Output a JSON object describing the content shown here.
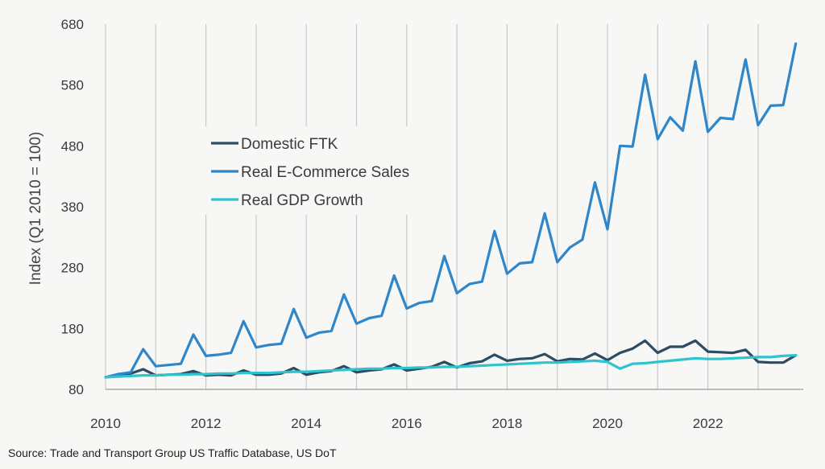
{
  "source": "Source: Trade and Transport Group US Traffic Database, US DoT",
  "chart_data": {
    "type": "line",
    "ylabel": "Index (Q1 2010 = 100)",
    "xlabel": "",
    "xlim": [
      2010,
      2023.9
    ],
    "ylim": [
      80,
      680
    ],
    "yticks": [
      80,
      180,
      280,
      380,
      480,
      580,
      680
    ],
    "xticks": [
      2010,
      2012,
      2014,
      2016,
      2018,
      2020,
      2022
    ],
    "grid": "vertical",
    "legend": "upper-left inside plot",
    "series": [
      {
        "name": "Domestic FTK",
        "color": "#2d4b63",
        "x": [
          2010,
          2010.25,
          2010.5,
          2010.75,
          2011,
          2011.25,
          2011.5,
          2011.75,
          2012,
          2012.25,
          2012.5,
          2012.75,
          2013,
          2013.25,
          2013.5,
          2013.75,
          2014,
          2014.25,
          2014.5,
          2014.75,
          2015,
          2015.25,
          2015.5,
          2015.75,
          2016,
          2016.25,
          2016.5,
          2016.75,
          2017,
          2017.25,
          2017.5,
          2017.75,
          2018,
          2018.25,
          2018.5,
          2018.75,
          2019,
          2019.25,
          2019.5,
          2019.75,
          2020,
          2020.25,
          2020.5,
          2020.75,
          2021,
          2021.25,
          2021.5,
          2021.75,
          2022,
          2022.25,
          2022.5,
          2022.75,
          2023,
          2023.25,
          2023.5,
          2023.75
        ],
        "values": [
          100,
          103,
          106,
          113,
          103,
          104,
          105,
          110,
          103,
          104,
          103,
          111,
          104,
          104,
          106,
          115,
          104,
          108,
          110,
          118,
          108,
          111,
          113,
          121,
          111,
          114,
          117,
          125,
          116,
          123,
          126,
          137,
          127,
          130,
          131,
          138,
          126,
          130,
          129,
          139,
          128,
          140,
          147,
          160,
          140,
          150,
          150,
          160,
          142,
          141,
          140,
          145,
          125,
          124,
          124,
          136
        ]
      },
      {
        "name": "Real E-Commerce Sales",
        "color": "#2f86c8",
        "x": [
          2010,
          2010.25,
          2010.5,
          2010.75,
          2011,
          2011.25,
          2011.5,
          2011.75,
          2012,
          2012.25,
          2012.5,
          2012.75,
          2013,
          2013.25,
          2013.5,
          2013.75,
          2014,
          2014.25,
          2014.5,
          2014.75,
          2015,
          2015.25,
          2015.5,
          2015.75,
          2016,
          2016.25,
          2016.5,
          2016.75,
          2017,
          2017.25,
          2017.5,
          2017.75,
          2018,
          2018.25,
          2018.5,
          2018.75,
          2019,
          2019.25,
          2019.5,
          2019.75,
          2020,
          2020.25,
          2020.5,
          2020.75,
          2021,
          2021.25,
          2021.5,
          2021.75,
          2022,
          2022.25,
          2022.5,
          2022.75,
          2023,
          2023.25,
          2023.5,
          2023.75
        ],
        "values": [
          100,
          105,
          108,
          146,
          118,
          120,
          122,
          170,
          135,
          137,
          140,
          192,
          149,
          153,
          155,
          212,
          165,
          173,
          176,
          236,
          188,
          197,
          201,
          267,
          213,
          222,
          225,
          299,
          238,
          253,
          257,
          340,
          270,
          287,
          289,
          369,
          289,
          313,
          326,
          420,
          343,
          480,
          479,
          597,
          491,
          527,
          505,
          619,
          503,
          526,
          524,
          622,
          514,
          546,
          547,
          648
        ]
      },
      {
        "name": "Real GDP Growth",
        "color": "#2ec4cf",
        "x": [
          2010,
          2010.25,
          2010.5,
          2010.75,
          2011,
          2011.25,
          2011.5,
          2011.75,
          2012,
          2012.25,
          2012.5,
          2012.75,
          2013,
          2013.25,
          2013.5,
          2013.75,
          2014,
          2014.25,
          2014.5,
          2014.75,
          2015,
          2015.25,
          2015.5,
          2015.75,
          2016,
          2016.25,
          2016.5,
          2016.75,
          2017,
          2017.25,
          2017.5,
          2017.75,
          2018,
          2018.25,
          2018.5,
          2018.75,
          2019,
          2019.25,
          2019.5,
          2019.75,
          2020,
          2020.25,
          2020.5,
          2020.75,
          2021,
          2021.25,
          2021.5,
          2021.75,
          2022,
          2022.25,
          2022.5,
          2022.75,
          2023,
          2023.25,
          2023.5,
          2023.75
        ],
        "values": [
          100,
          101,
          102,
          103,
          103,
          104,
          104,
          105,
          105,
          106,
          106,
          107,
          107,
          107,
          108,
          109,
          109,
          110,
          111,
          112,
          113,
          114,
          114,
          115,
          115,
          116,
          116,
          117,
          117,
          118,
          119,
          120,
          121,
          122,
          123,
          124,
          124,
          125,
          126,
          127,
          125,
          114,
          122,
          123,
          125,
          127,
          129,
          131,
          130,
          130,
          131,
          132,
          133,
          133,
          135,
          136
        ]
      }
    ]
  }
}
